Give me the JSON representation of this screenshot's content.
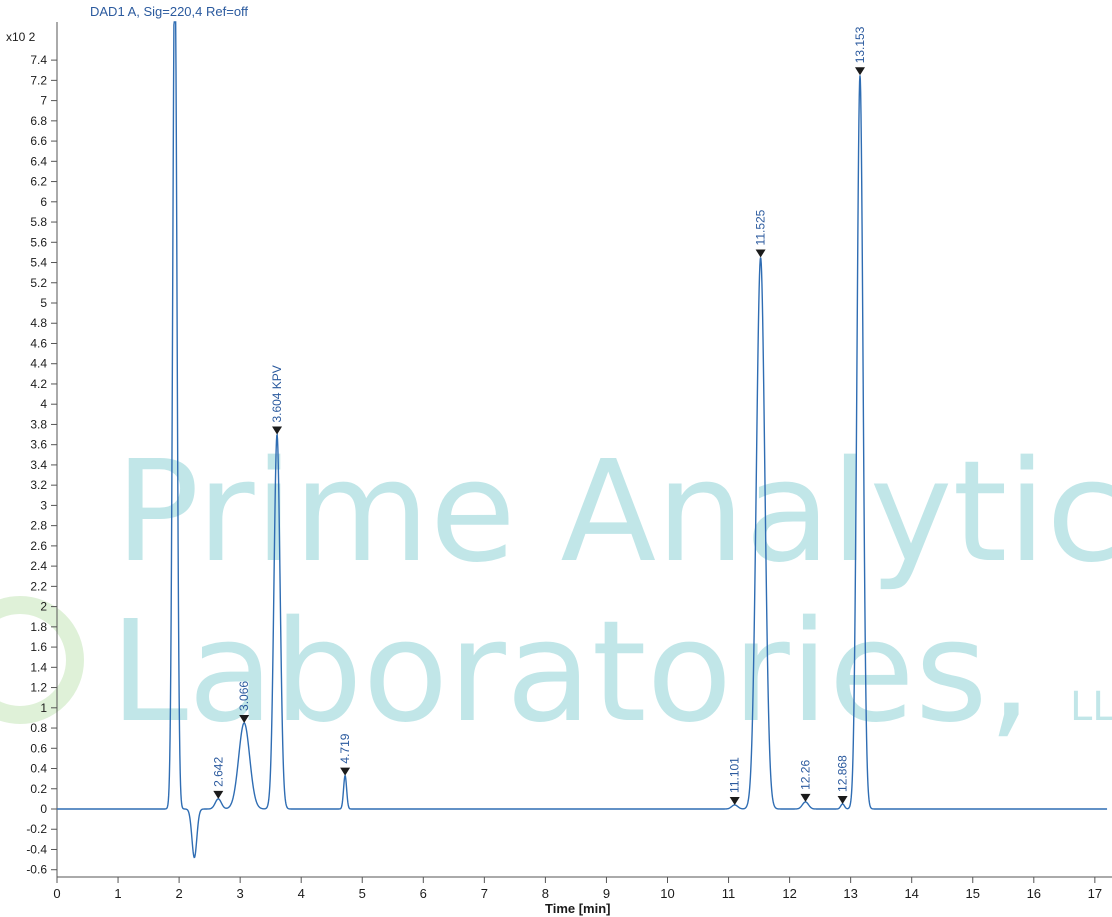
{
  "chart_data": {
    "type": "line",
    "title": "DAD1 A, Sig=220,4 Ref=off",
    "xlabel": "Time [min]",
    "ylabel": "",
    "y_scale_label": "x10 2",
    "xlim": [
      0,
      17.2
    ],
    "ylim": [
      -0.7,
      7.6
    ],
    "x_ticks": [
      "0",
      "1",
      "2",
      "3",
      "4",
      "5",
      "6",
      "7",
      "8",
      "9",
      "10",
      "11",
      "12",
      "13",
      "14",
      "15",
      "16",
      "17"
    ],
    "y_ticks": [
      "-0.6",
      "-0.4",
      "-0.2",
      "0",
      "0.2",
      "0.4",
      "0.6",
      "0.8",
      "1",
      "1.2",
      "1.4",
      "1.6",
      "1.8",
      "2",
      "2.2",
      "2.4",
      "2.6",
      "2.8",
      "3",
      "3.2",
      "3.4",
      "3.6",
      "3.8",
      "4",
      "4.2",
      "4.4",
      "4.6",
      "4.8",
      "5",
      "5.2",
      "5.4",
      "5.6",
      "5.8",
      "6",
      "6.2",
      "6.4",
      "6.6",
      "6.8",
      "7",
      "7.2",
      "7.4"
    ],
    "grid": false,
    "series": [
      {
        "color": "#2f6db3",
        "peaks": [
          {
            "x": 1.93,
            "y": 8.5,
            "width": 0.035,
            "label": ""
          },
          {
            "x": 2.642,
            "y": 0.1,
            "width": 0.05,
            "label": "2.642"
          },
          {
            "x": 3.066,
            "y": 0.85,
            "width": 0.09,
            "label": "3.066"
          },
          {
            "x": 3.604,
            "y": 3.7,
            "width": 0.05,
            "label": "3.604 KPV"
          },
          {
            "x": 4.719,
            "y": 0.33,
            "width": 0.025,
            "label": "4.719"
          },
          {
            "x": 11.101,
            "y": 0.04,
            "width": 0.05,
            "label": "11.101"
          },
          {
            "x": 11.525,
            "y": 5.45,
            "width": 0.07,
            "label": "11.525"
          },
          {
            "x": 12.26,
            "y": 0.07,
            "width": 0.05,
            "label": "12.26"
          },
          {
            "x": 12.868,
            "y": 0.05,
            "width": 0.03,
            "label": "12.868"
          },
          {
            "x": 13.153,
            "y": 7.25,
            "width": 0.05,
            "label": "13.153"
          }
        ],
        "dip": {
          "x": 2.25,
          "y": -0.48,
          "width": 0.04
        }
      }
    ]
  },
  "watermark": {
    "line1": "Prime Analytic",
    "line2": "Laboratories,",
    "suffix": "LL",
    "color": "#8fd3d6"
  }
}
